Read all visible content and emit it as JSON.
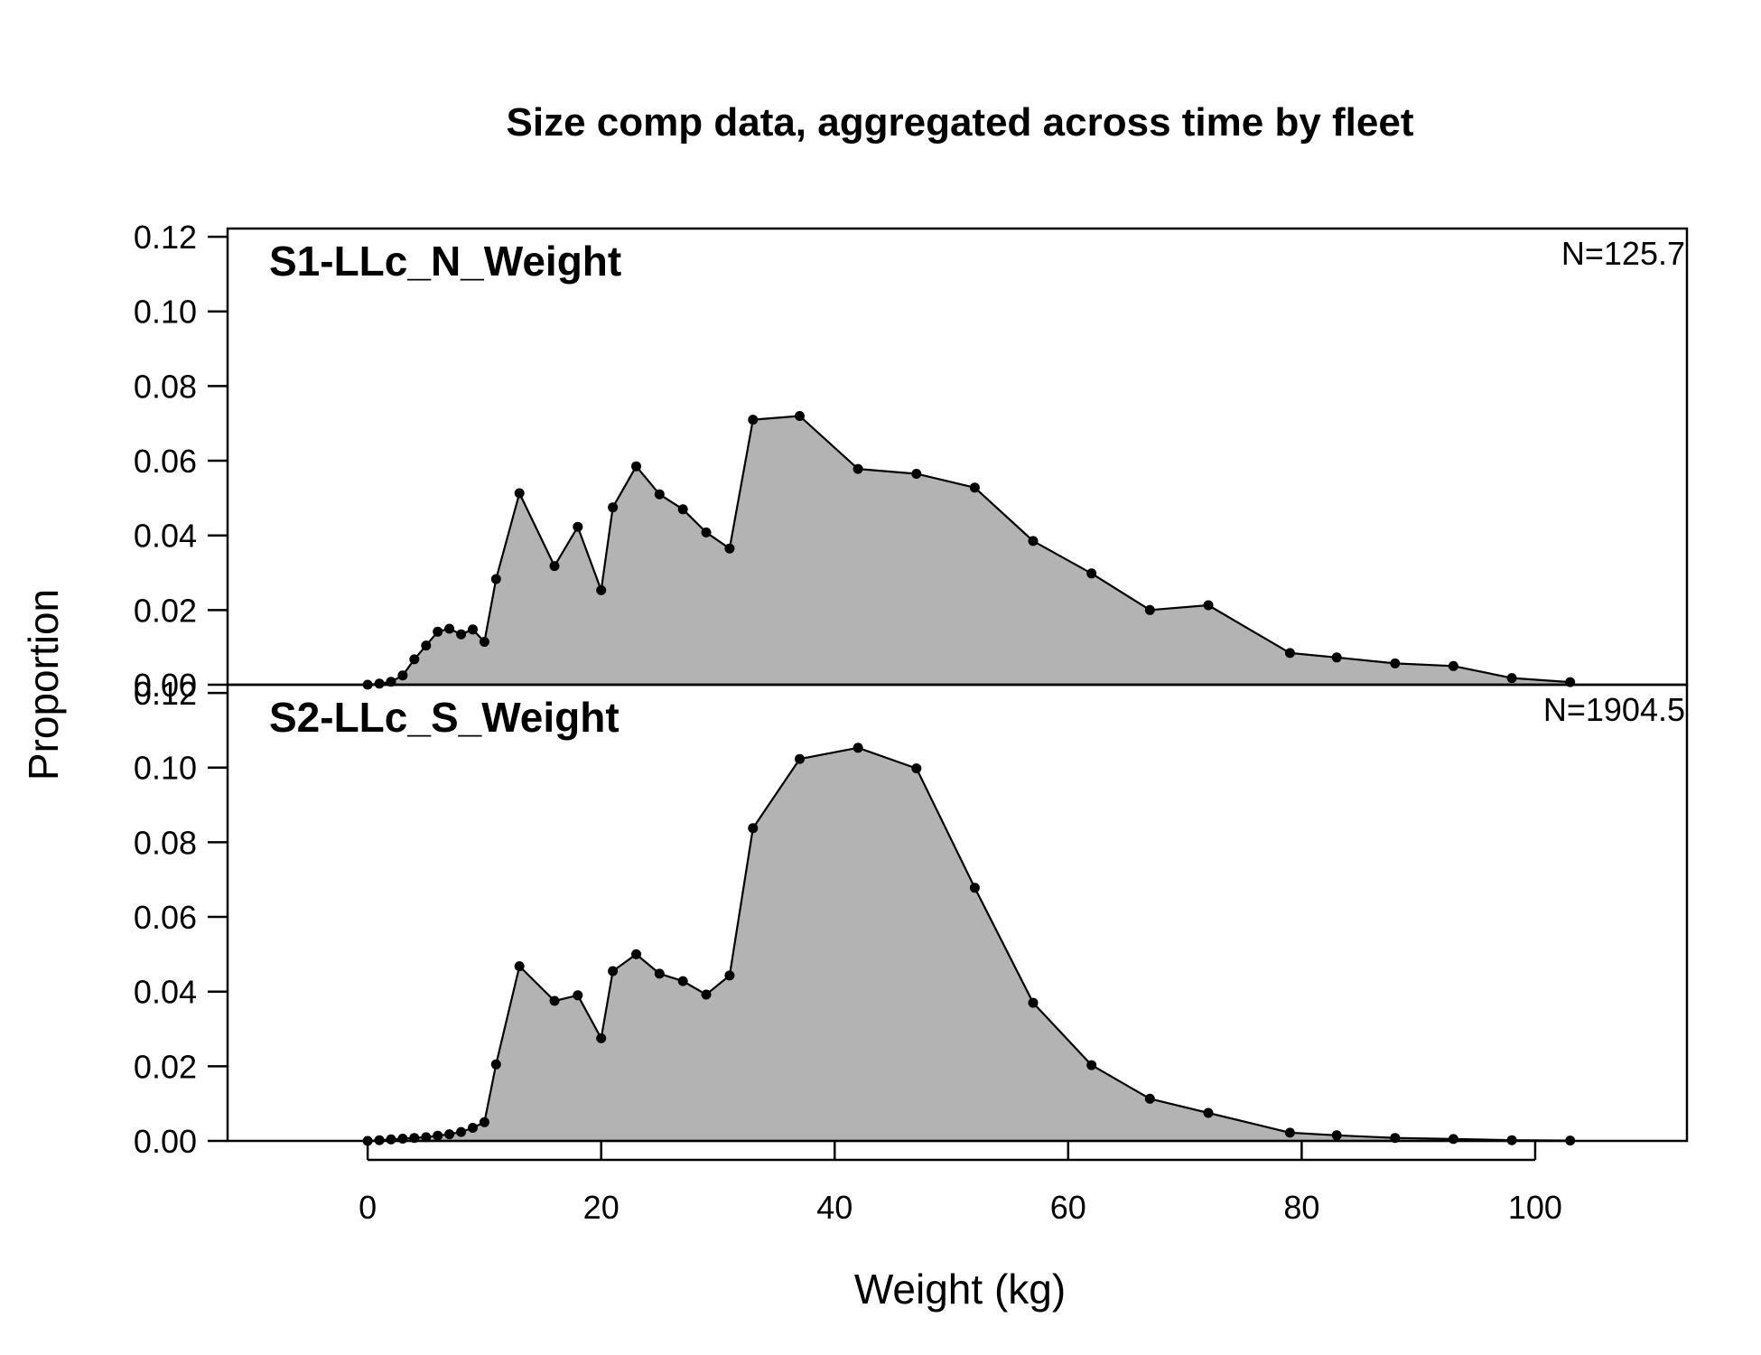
{
  "chart_data": {
    "type": "area",
    "title": "Size comp data, aggregated across time by fleet",
    "xlabel": "Weight (kg)",
    "ylabel": "Proportion",
    "xlim": [
      -12,
      113
    ],
    "ylim": [
      0,
      0.12
    ],
    "x_ticks": [
      0,
      20,
      40,
      60,
      80,
      100
    ],
    "x_tick_labels": [
      "0",
      "20",
      "40",
      "60",
      "80",
      "100"
    ],
    "y_ticks": [
      0,
      0.02,
      0.04,
      0.06,
      0.08,
      0.1,
      0.12
    ],
    "y_tick_labels": [
      "0.00",
      "0.02",
      "0.04",
      "0.06",
      "0.08",
      "0.10",
      "0.12"
    ],
    "fill_color": "#b3b3b3",
    "line_color": "#000000",
    "panels": [
      {
        "name": "S1-LLc_N_Weight",
        "n_label": "N=125.7",
        "x": [
          0,
          1,
          2,
          3,
          4,
          5,
          6,
          7,
          8,
          9,
          10,
          11,
          13,
          16,
          18,
          20,
          21,
          23,
          25,
          27,
          29,
          31,
          33,
          37,
          42,
          47,
          52,
          57,
          62,
          67,
          72,
          79,
          83,
          88,
          93,
          98,
          103
        ],
        "y": [
          0.0,
          0.0003,
          0.0008,
          0.0025,
          0.0068,
          0.0105,
          0.0142,
          0.015,
          0.0135,
          0.0148,
          0.0115,
          0.0283,
          0.0513,
          0.0318,
          0.0423,
          0.0253,
          0.0475,
          0.0585,
          0.051,
          0.047,
          0.0408,
          0.0365,
          0.071,
          0.072,
          0.0578,
          0.0565,
          0.0528,
          0.0385,
          0.0298,
          0.02,
          0.0213,
          0.0085,
          0.0073,
          0.0057,
          0.005,
          0.0018,
          0.0007
        ]
      },
      {
        "name": "S2-LLc_S_Weight",
        "n_label": "N=1904.5",
        "x": [
          0,
          1,
          2,
          3,
          4,
          5,
          6,
          7,
          8,
          9,
          10,
          11,
          13,
          16,
          18,
          20,
          21,
          23,
          25,
          27,
          29,
          31,
          33,
          37,
          42,
          47,
          52,
          57,
          62,
          67,
          72,
          79,
          83,
          88,
          93,
          98,
          103
        ],
        "y": [
          0.0,
          0.0002,
          0.0004,
          0.0006,
          0.0008,
          0.001,
          0.0014,
          0.0018,
          0.0024,
          0.0035,
          0.005,
          0.0205,
          0.0468,
          0.0375,
          0.039,
          0.0275,
          0.0455,
          0.05,
          0.0448,
          0.0428,
          0.0392,
          0.0443,
          0.0838,
          0.1023,
          0.1053,
          0.0998,
          0.0678,
          0.037,
          0.0203,
          0.0113,
          0.0075,
          0.0022,
          0.0015,
          0.0008,
          0.0005,
          0.0002,
          0.0001
        ]
      }
    ]
  }
}
